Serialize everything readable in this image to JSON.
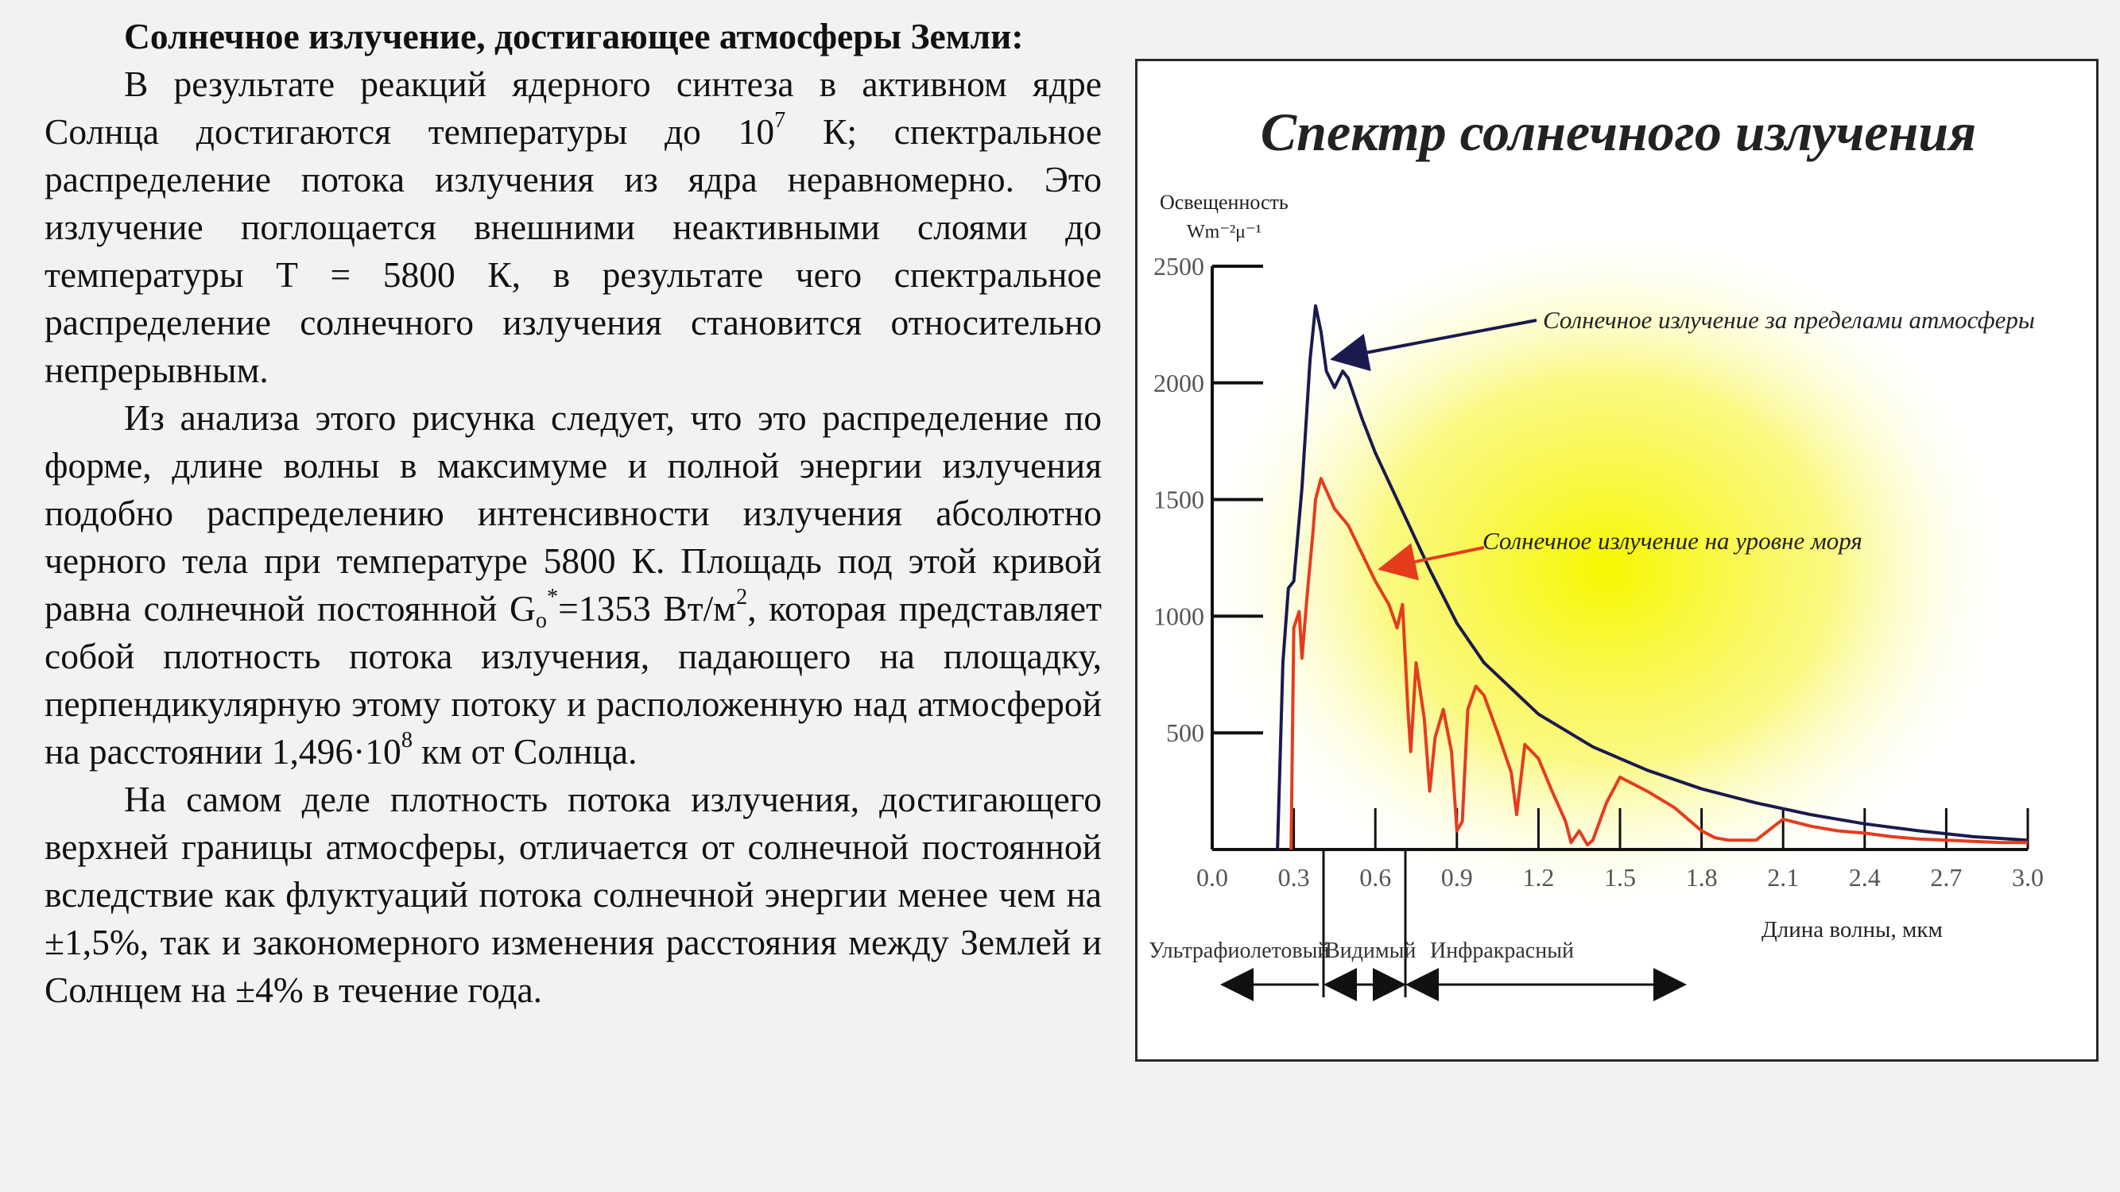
{
  "text": {
    "heading": "Солнечное излучение, достигающее атмосферы Земли:",
    "p1_a": "В результате реакций ядерного синтеза в активном ядре Солнца достигаются температуры до 10",
    "p1_sup": "7",
    "p1_b": " К; спектральное распределение потока излучения из ядра неравномерно. Это излучение поглощается внешними неактивными слоями до температуры Т = 5800 К, в результате чего спектральное распределение солнечного излучения становится относительно непрерывным.",
    "p2_a": "Из анализа этого рисунка следует, что это распределение по форме, длине волны в максимуме и полной энергии излучения подобно распределению интенсивности излучения абсолютно черного тела при температуре 5800 К. Площадь под этой кривой равна солнечной постоянной G",
    "p2_sub": "o",
    "p2_sup": "*",
    "p2_b": "=1353 Вт/м",
    "p2_sup2": "2",
    "p2_c": ", которая представляет собой плотность потока излучения, падающего на площадку, перпендикулярную этому потоку и расположенную над атмосферой на расстоянии 1,496·10",
    "p2_sup3": "8",
    "p2_d": " км от Солнца.",
    "p3": "На самом деле плотность потока излучения, достигающего верхней границы атмосферы, отличается от солнечной постоянной вследствие как флуктуаций потока солнечной энергии менее чем на ±1,5%, так и закономерного изменения расстояния между Землей и Солнцем на ±4% в течение года."
  },
  "figure": {
    "title": "Спектр солнечного излучения",
    "title_color": "#5a1a6e",
    "glow_color": "#f7f700",
    "ylabel_line1": "Освещенность",
    "ylabel_line2": "Wm⁻²μ⁻¹",
    "xlabel": "Длина волны, мкм",
    "annotation_top": "Солнечное излучение за пределами атмосферы",
    "annotation_bottom": "Солнечное излучение на уровне моря",
    "region_uv": "Ультрафиолетовый",
    "region_visible": "Видимый",
    "region_ir": "Инфракрасный"
  },
  "chart_data": {
    "type": "line",
    "title": "Спектр солнечного излучения",
    "xlabel": "Длина волны, мкм",
    "ylabel": "Освещенность Wm⁻²μ⁻¹",
    "xlim": [
      0,
      3.0
    ],
    "ylim": [
      0,
      2500
    ],
    "x_ticks": [
      "0.0",
      "0.3",
      "0.6",
      "0.9",
      "1.2",
      "1.5",
      "1.8",
      "2.1",
      "2.4",
      "2.7",
      "3.0"
    ],
    "y_ticks": [
      "500",
      "1000",
      "1500",
      "2000",
      "2500"
    ],
    "series": [
      {
        "name": "Солнечное излучение за пределами атмосферы",
        "color": "#1a1a4e",
        "x": [
          0.24,
          0.26,
          0.28,
          0.3,
          0.33,
          0.36,
          0.38,
          0.4,
          0.42,
          0.45,
          0.48,
          0.5,
          0.55,
          0.6,
          0.7,
          0.8,
          0.9,
          1.0,
          1.2,
          1.4,
          1.6,
          1.8,
          2.0,
          2.2,
          2.4,
          2.6,
          2.8,
          3.0
        ],
        "y": [
          0,
          800,
          1120,
          1150,
          1550,
          2100,
          2330,
          2220,
          2050,
          1980,
          2050,
          2020,
          1850,
          1700,
          1450,
          1200,
          970,
          800,
          580,
          440,
          340,
          260,
          200,
          150,
          110,
          80,
          55,
          40
        ]
      },
      {
        "name": "Солнечное излучение на уровне моря",
        "color": "#e53c1e",
        "x": [
          0.29,
          0.3,
          0.32,
          0.33,
          0.35,
          0.37,
          0.38,
          0.4,
          0.45,
          0.5,
          0.55,
          0.6,
          0.65,
          0.68,
          0.7,
          0.72,
          0.73,
          0.75,
          0.78,
          0.8,
          0.82,
          0.85,
          0.88,
          0.9,
          0.92,
          0.94,
          0.97,
          1.0,
          1.05,
          1.1,
          1.12,
          1.15,
          1.2,
          1.25,
          1.3,
          1.32,
          1.35,
          1.38,
          1.4,
          1.45,
          1.5,
          1.6,
          1.7,
          1.8,
          1.85,
          1.9,
          2.0,
          2.1,
          2.2,
          2.3,
          2.4,
          2.5,
          2.6,
          2.7,
          2.8,
          2.9,
          3.0
        ],
        "y": [
          0,
          950,
          1020,
          820,
          1100,
          1350,
          1500,
          1590,
          1460,
          1390,
          1270,
          1150,
          1050,
          950,
          1050,
          600,
          420,
          800,
          560,
          250,
          480,
          600,
          420,
          80,
          120,
          600,
          700,
          660,
          500,
          330,
          150,
          450,
          390,
          250,
          120,
          30,
          80,
          20,
          40,
          200,
          310,
          250,
          180,
          80,
          50,
          40,
          40,
          130,
          100,
          80,
          70,
          55,
          45,
          40,
          35,
          30,
          30
        ]
      }
    ],
    "regions": [
      {
        "label": "Ультрафиолетовый",
        "x_range": [
          0.0,
          0.4
        ]
      },
      {
        "label": "Видимый",
        "x_range": [
          0.4,
          0.75
        ]
      },
      {
        "label": "Инфракрасный",
        "x_range": [
          0.75,
          1.75
        ]
      }
    ],
    "grid": false
  }
}
